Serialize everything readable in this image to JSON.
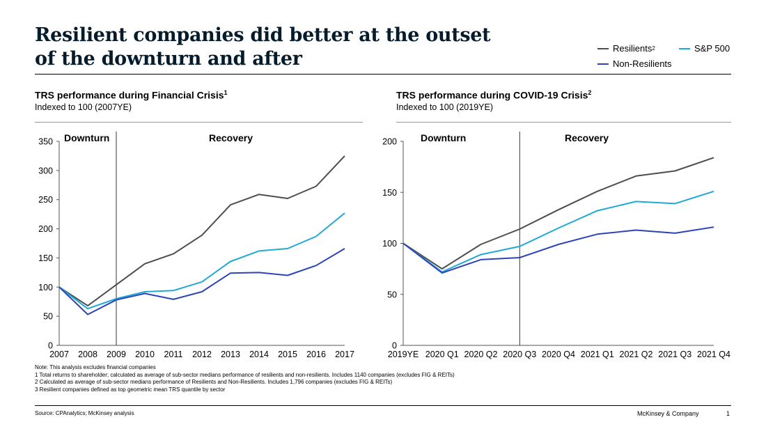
{
  "header": {
    "title_line1": "Resilient companies did better at the outset",
    "title_line2": "of the downturn and after"
  },
  "legend": {
    "resilients": "Resilients",
    "resilients_sup": "2",
    "sp500": "S&P 500",
    "non_resilients": "Non-Resilients"
  },
  "colors": {
    "resilients": "#4d4d4f",
    "sp500": "#1fa9d6",
    "non_resilients": "#2c44b8",
    "divider": "#000000"
  },
  "chart_data": [
    {
      "type": "line",
      "title": "TRS performance during Financial Crisis",
      "title_sup": "1",
      "subtitle": "Indexed to 100 (2007YE)",
      "phase_labels": [
        "Downturn",
        "Recovery"
      ],
      "categories": [
        "2007",
        "2008",
        "2009",
        "2010",
        "2011",
        "2012",
        "2013",
        "2014",
        "2015",
        "2016",
        "2017"
      ],
      "ylim": [
        0,
        350
      ],
      "yticks": [
        0,
        50,
        100,
        150,
        200,
        250,
        300,
        350
      ],
      "series": [
        {
          "name": "Resilients",
          "color_key": "resilients",
          "values": [
            100,
            68,
            104,
            140,
            157,
            189,
            241,
            259,
            252,
            273,
            325
          ]
        },
        {
          "name": "S&P 500",
          "color_key": "sp500",
          "values": [
            100,
            63,
            80,
            92,
            94,
            109,
            144,
            162,
            166,
            187,
            227
          ]
        },
        {
          "name": "Non-Resilients",
          "color_key": "non_resilients",
          "values": [
            100,
            53,
            78,
            89,
            79,
            92,
            124,
            125,
            120,
            137,
            166
          ]
        }
      ]
    },
    {
      "type": "line",
      "title": "TRS performance during COVID-19 Crisis",
      "title_sup": "2",
      "subtitle": "Indexed to 100 (2019YE)",
      "phase_labels": [
        "Downturn",
        "Recovery"
      ],
      "categories": [
        "2019YE",
        "2020 Q1",
        "2020 Q2",
        "2020 Q3",
        "2020 Q4",
        "2021 Q1",
        "2021 Q2",
        "2021 Q3",
        "2021 Q4"
      ],
      "ylim": [
        0,
        200
      ],
      "yticks": [
        0,
        50,
        100,
        150,
        200
      ],
      "series": [
        {
          "name": "Resilients",
          "color_key": "resilients",
          "values": [
            100,
            75,
            99,
            114,
            133,
            151,
            166,
            171,
            184
          ]
        },
        {
          "name": "S&P 500",
          "color_key": "sp500",
          "values": [
            100,
            72,
            89,
            97,
            115,
            132,
            141,
            139,
            151
          ]
        },
        {
          "name": "Non-Resilients",
          "color_key": "non_resilients",
          "values": [
            100,
            71,
            84,
            86,
            99,
            109,
            113,
            110,
            116
          ]
        }
      ]
    }
  ],
  "notes": [
    "Note: This analysis excludes financial companies",
    "1 Total returns to shareholder; calculated as average of sub-sector medians performance of resilients and non-resilients. Includes 1140 companies (excludes FIG & REITs)",
    "2 Calculated as average of sub-sector medians performance of Resilients and Non-Resilients. Includes 1,796 companies (excludes FIG & REITs)",
    "3 Resilient companies defined as top geometric mean TRS quantile by sector"
  ],
  "footer": {
    "source": "Source: CPAnalytics; McKinsey analysis",
    "company": "McKinsey & Company",
    "page": "1"
  }
}
